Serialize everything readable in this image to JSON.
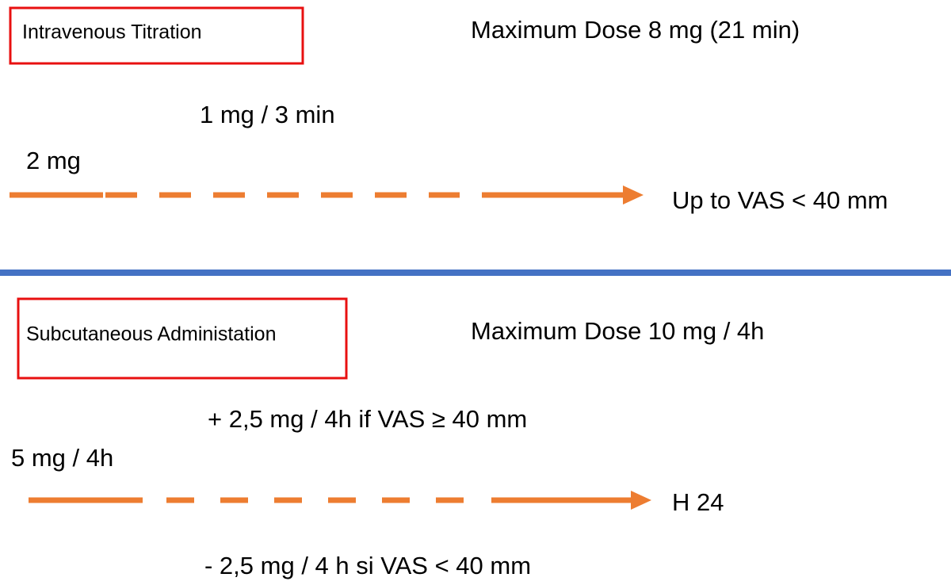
{
  "intravenous": {
    "label": "Intravenous Titration",
    "max_dose": "Maximum Dose 8 mg (21 min)",
    "step": "1 mg / 3 min",
    "initial": "2 mg",
    "end": "Up to VAS < 40 mm"
  },
  "subcutaneous": {
    "label": "Subcutaneous Administation",
    "max_dose": "Maximum Dose 10 mg / 4h",
    "increase": "+ 2,5 mg / 4h if VAS ≥ 40 mm",
    "initial": "5 mg / 4h",
    "end": "H 24",
    "decrease": "- 2,5 mg / 4 h si VAS < 40 mm"
  }
}
